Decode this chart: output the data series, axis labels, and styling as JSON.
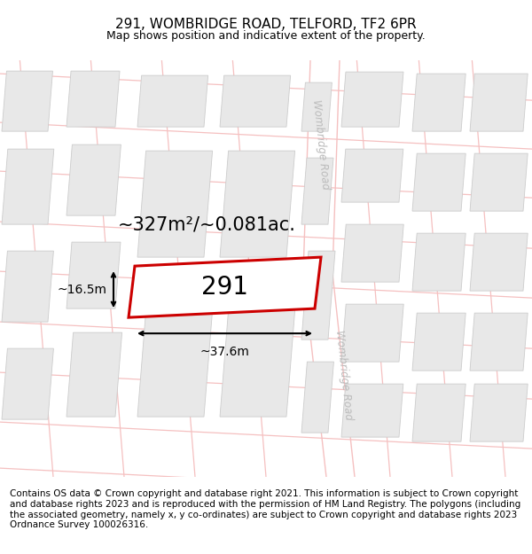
{
  "title": "291, WOMBRIDGE ROAD, TELFORD, TF2 6PR",
  "subtitle": "Map shows position and indicative extent of the property.",
  "footer_text": "Contains OS data © Crown copyright and database right 2021. This information is subject to Crown copyright and database rights 2023 and is reproduced with the permission of HM Land Registry. The polygons (including the associated geometry, namely x, y co-ordinates) are subject to Crown copyright and database rights 2023 Ordnance Survey 100026316.",
  "bg_color": "#ffffff",
  "plot_border_color": "#cc0000",
  "road_label": "Wombridge Road",
  "plot_label": "291",
  "area_label": "~327m²/~0.081ac.",
  "width_label": "~37.6m",
  "height_label": "~16.5m",
  "title_fontsize": 11,
  "subtitle_fontsize": 9,
  "area_fontsize": 15,
  "footer_fontsize": 7.5,
  "road_font_color": "#bbbbbb",
  "street_line_color": "#f5c0c0",
  "building_fill": "#e8e8e8",
  "building_edge": "#cccccc"
}
